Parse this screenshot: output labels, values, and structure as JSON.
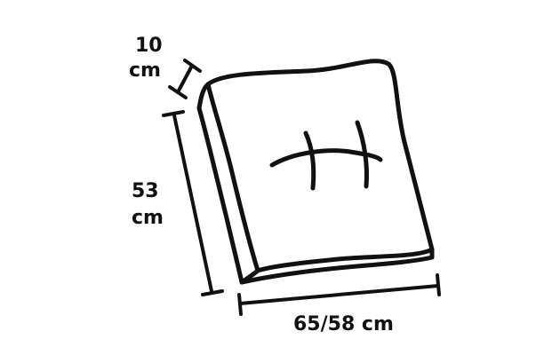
{
  "diagram": {
    "thickness": {
      "value": "10",
      "unit": "cm"
    },
    "depth": {
      "value": "53",
      "unit": "cm"
    },
    "width": {
      "label": "65/58 cm"
    }
  },
  "icons": {
    "cushion": "seat-cushion-icon",
    "tufting": "tufting-stitch-icon"
  },
  "colors": {
    "line": "#111111",
    "background": "#ffffff"
  }
}
